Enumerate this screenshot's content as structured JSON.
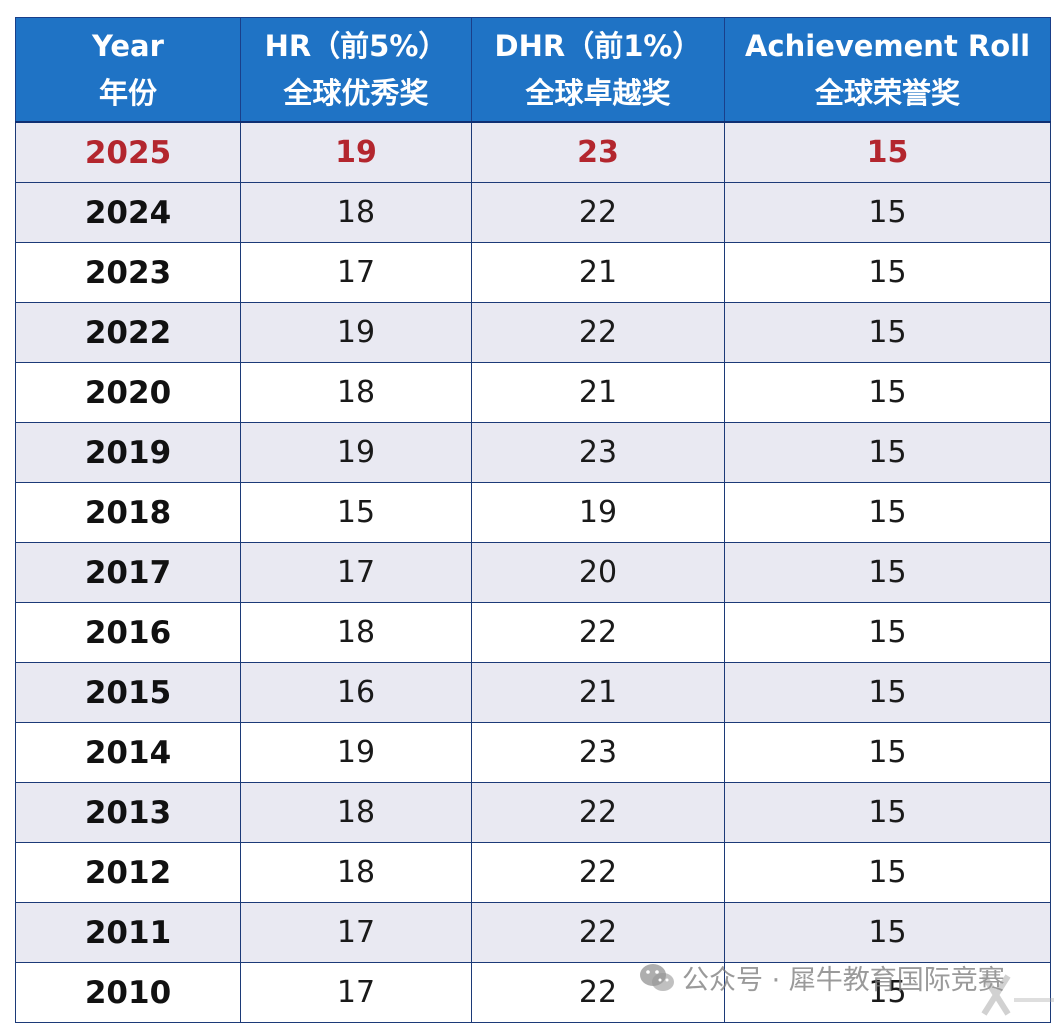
{
  "table": {
    "headers": [
      {
        "en": "Year",
        "zh": "年份"
      },
      {
        "en": "HR（前5%）",
        "zh": "全球优秀奖"
      },
      {
        "en": "DHR（前1%）",
        "zh": "全球卓越奖"
      },
      {
        "en": "Achievement Roll",
        "zh": "全球荣誉奖"
      }
    ],
    "rows": [
      [
        "2025",
        "19",
        "23",
        "15"
      ],
      [
        "2024",
        "18",
        "22",
        "15"
      ],
      [
        "2023",
        "17",
        "21",
        "15"
      ],
      [
        "2022",
        "19",
        "22",
        "15"
      ],
      [
        "2020",
        "18",
        "21",
        "15"
      ],
      [
        "2019",
        "19",
        "23",
        "15"
      ],
      [
        "2018",
        "15",
        "19",
        "15"
      ],
      [
        "2017",
        "17",
        "20",
        "15"
      ],
      [
        "2016",
        "18",
        "22",
        "15"
      ],
      [
        "2015",
        "16",
        "21",
        "15"
      ],
      [
        "2014",
        "19",
        "23",
        "15"
      ],
      [
        "2013",
        "18",
        "22",
        "15"
      ],
      [
        "2012",
        "18",
        "22",
        "15"
      ],
      [
        "2011",
        "17",
        "22",
        "15"
      ],
      [
        "2010",
        "17",
        "22",
        "15"
      ]
    ]
  },
  "watermark": {
    "text": "公众号 · 犀牛教育国际竞赛",
    "icon": "wechat-icon",
    "logo_icon": "x-logo-icon"
  },
  "colors": {
    "header_bg": "#1f73c5",
    "highlight_text": "#b3262e",
    "stripe_bg": "#e9e9f2"
  }
}
